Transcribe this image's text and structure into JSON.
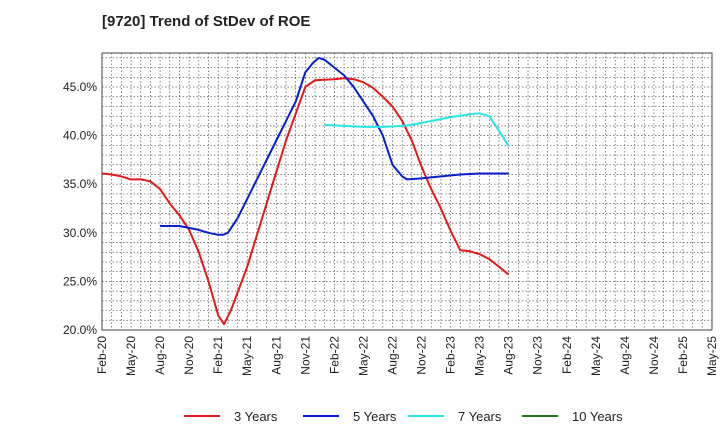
{
  "title": "[9720]  Trend of StDev of ROE",
  "chart_data": {
    "type": "line",
    "title": "[9720]  Trend of StDev of ROE",
    "xlabel": "",
    "ylabel": "",
    "ylim": [
      20.0,
      48.5
    ],
    "yticks": [
      "20.0%",
      "25.0%",
      "30.0%",
      "35.0%",
      "40.0%",
      "45.0%"
    ],
    "yticks_values": [
      20,
      25,
      30,
      35,
      40,
      45
    ],
    "xticks": [
      "Feb-20",
      "May-20",
      "Aug-20",
      "Nov-20",
      "Feb-21",
      "May-21",
      "Aug-21",
      "Nov-21",
      "Feb-22",
      "May-22",
      "Aug-22",
      "Nov-22",
      "Feb-23",
      "May-23",
      "Aug-23",
      "Nov-23",
      "Feb-24",
      "May-24",
      "Aug-24",
      "Nov-24",
      "Feb-25",
      "May-25"
    ],
    "grid": true,
    "legend_position": "bottom",
    "series": [
      {
        "name": "3 Years",
        "color": "#e31a1c",
        "points": [
          [
            0,
            36.1
          ],
          [
            1,
            36.0
          ],
          [
            2,
            35.8
          ],
          [
            3,
            35.5
          ],
          [
            4,
            35.5
          ],
          [
            5,
            35.3
          ],
          [
            6,
            34.5
          ],
          [
            7,
            33.0
          ],
          [
            8,
            31.8
          ],
          [
            9,
            30.3
          ],
          [
            10,
            28.0
          ],
          [
            11,
            25.0
          ],
          [
            12,
            21.5
          ],
          [
            12.6,
            20.6
          ],
          [
            13.3,
            22.0
          ],
          [
            15,
            26.5
          ],
          [
            17,
            33.0
          ],
          [
            19,
            39.5
          ],
          [
            21,
            45.0
          ],
          [
            22,
            45.7
          ],
          [
            24,
            45.8
          ],
          [
            25,
            45.9
          ],
          [
            26,
            45.8
          ],
          [
            27,
            45.5
          ],
          [
            28,
            44.9
          ],
          [
            29,
            44.0
          ],
          [
            30,
            43.0
          ],
          [
            31,
            41.5
          ],
          [
            32,
            39.5
          ],
          [
            33,
            36.8
          ],
          [
            34,
            34.5
          ],
          [
            35,
            32.5
          ],
          [
            36,
            30.2
          ],
          [
            37,
            28.2
          ],
          [
            38,
            28.1
          ],
          [
            39,
            27.8
          ],
          [
            40,
            27.3
          ],
          [
            41,
            26.5
          ],
          [
            42,
            25.7
          ]
        ]
      },
      {
        "name": "5 Years",
        "color": "#0a1fcc",
        "points": [
          [
            6,
            30.7
          ],
          [
            7,
            30.7
          ],
          [
            8,
            30.7
          ],
          [
            9,
            30.5
          ],
          [
            10,
            30.3
          ],
          [
            11,
            30.0
          ],
          [
            12,
            29.8
          ],
          [
            12.5,
            29.8
          ],
          [
            13,
            30.0
          ],
          [
            14,
            31.5
          ],
          [
            16,
            35.5
          ],
          [
            18,
            39.5
          ],
          [
            20,
            43.5
          ],
          [
            21,
            46.5
          ],
          [
            21.8,
            47.5
          ],
          [
            22.4,
            48.0
          ],
          [
            23,
            47.8
          ],
          [
            24,
            47.0
          ],
          [
            25,
            46.2
          ],
          [
            26,
            45.0
          ],
          [
            27,
            43.5
          ],
          [
            28,
            42.0
          ],
          [
            29,
            40.0
          ],
          [
            30,
            37.0
          ],
          [
            31,
            35.8
          ],
          [
            31.5,
            35.5
          ],
          [
            33,
            35.6
          ],
          [
            35,
            35.8
          ],
          [
            37,
            36.0
          ],
          [
            39,
            36.1
          ],
          [
            42,
            36.1
          ]
        ]
      },
      {
        "name": "7 Years",
        "color": "#27e6e6",
        "points": [
          [
            23,
            41.1
          ],
          [
            25,
            41.0
          ],
          [
            27,
            40.9
          ],
          [
            29,
            40.9
          ],
          [
            31,
            41.0
          ],
          [
            32,
            41.1
          ],
          [
            34,
            41.5
          ],
          [
            36,
            41.9
          ],
          [
            38,
            42.2
          ],
          [
            39,
            42.3
          ],
          [
            40,
            42.0
          ],
          [
            41,
            40.5
          ],
          [
            42,
            38.9
          ]
        ]
      },
      {
        "name": "10 Years",
        "color": "#1f7a1f",
        "points": []
      }
    ]
  }
}
